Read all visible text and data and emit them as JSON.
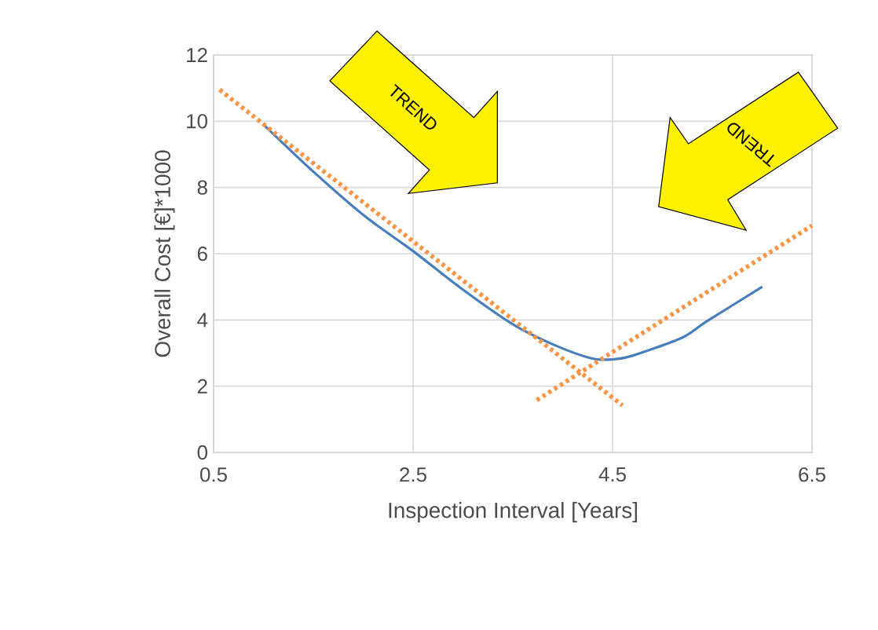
{
  "chart_data": {
    "type": "line",
    "xlabel": "Inspection Interval [Years]",
    "ylabel": "Overall Cost [€]*1000",
    "xlim": [
      0.5,
      6.5
    ],
    "xticks": [
      0.5,
      2.5,
      4.5,
      6.5
    ],
    "ylim": [
      0,
      12
    ],
    "yticks": [
      0,
      2,
      4,
      6,
      8,
      10,
      12
    ],
    "grid": true,
    "line_style": "solid",
    "series": [
      {
        "color": "#4a7ebb",
        "x": [
          1.0,
          1.51,
          2.03,
          2.5,
          2.97,
          3.5,
          3.92,
          4.29,
          4.5,
          4.7,
          5.2,
          5.44,
          6.0
        ],
        "values": [
          9.9,
          8.45,
          7.1,
          6.08,
          4.98,
          3.87,
          3.24,
          2.84,
          2.81,
          2.92,
          3.47,
          3.95,
          5.0
        ]
      },
      {
        "color": "#f79646",
        "line_style": "dotted",
        "x": [
          0.56,
          4.6
        ],
        "values": [
          10.95,
          1.42
        ]
      },
      {
        "color": "#f79646",
        "line_style": "dotted",
        "x": [
          3.74,
          6.5
        ],
        "values": [
          1.58,
          6.85
        ]
      }
    ],
    "annotations": [
      "TREND",
      "TREND"
    ]
  }
}
